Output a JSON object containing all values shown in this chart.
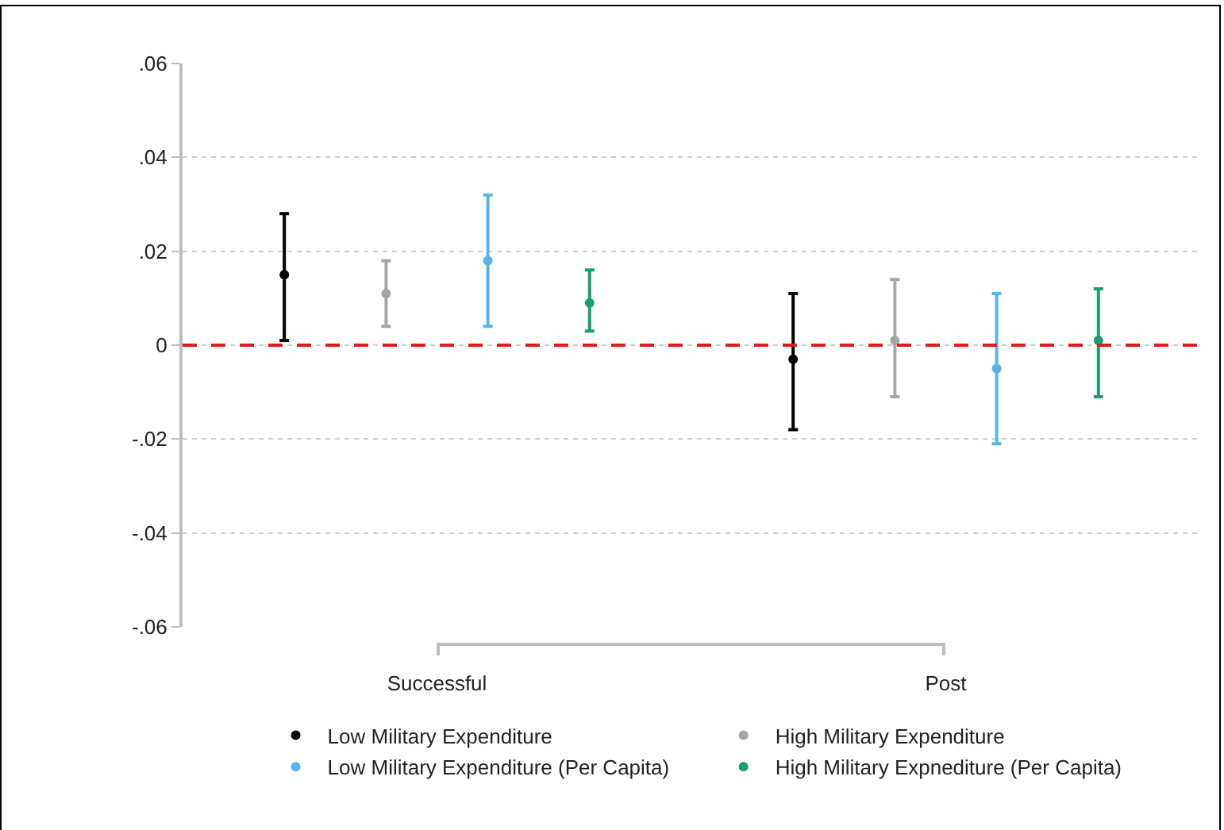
{
  "chart_data": {
    "type": "scatter",
    "categories": [
      "Successful",
      "Post"
    ],
    "series": [
      {
        "name": "Low Military Expenditure",
        "color": "#000000",
        "values": [
          0.015,
          -0.003
        ],
        "errors": [
          [
            0.001,
            0.028
          ],
          [
            -0.018,
            0.011
          ]
        ]
      },
      {
        "name": "High Military Expenditure",
        "color": "#a6a6a6",
        "values": [
          0.011,
          0.001
        ],
        "errors": [
          [
            0.004,
            0.018
          ],
          [
            -0.011,
            0.014
          ]
        ]
      },
      {
        "name": "Low Military Expenditure (Per Capita)",
        "color": "#5ab4e5",
        "values": [
          0.018,
          -0.005
        ],
        "errors": [
          [
            0.004,
            0.032
          ],
          [
            -0.021,
            0.011
          ]
        ]
      },
      {
        "name": "High Military Expnediture (Per Capita)",
        "color": "#1a9e77",
        "values": [
          0.009,
          0.001
        ],
        "errors": [
          [
            0.003,
            0.016
          ],
          [
            -0.011,
            0.012
          ]
        ]
      }
    ],
    "ylim": [
      -0.06,
      0.06
    ],
    "yticks": [
      {
        "value": -0.06,
        "label": "-.06"
      },
      {
        "value": -0.04,
        "label": "-.04"
      },
      {
        "value": -0.02,
        "label": "-.02"
      },
      0,
      {
        "value": 0.02,
        "label": ".02"
      },
      {
        "value": 0.04,
        "label": ".04"
      },
      {
        "value": 0.06,
        "label": ".06"
      }
    ],
    "ref_lines": [
      {
        "axis": "y",
        "value": 0,
        "color": "#e41a1c",
        "line_style": "dashed"
      }
    ],
    "grid": "y",
    "legend": "bottom",
    "marker": "circle"
  }
}
